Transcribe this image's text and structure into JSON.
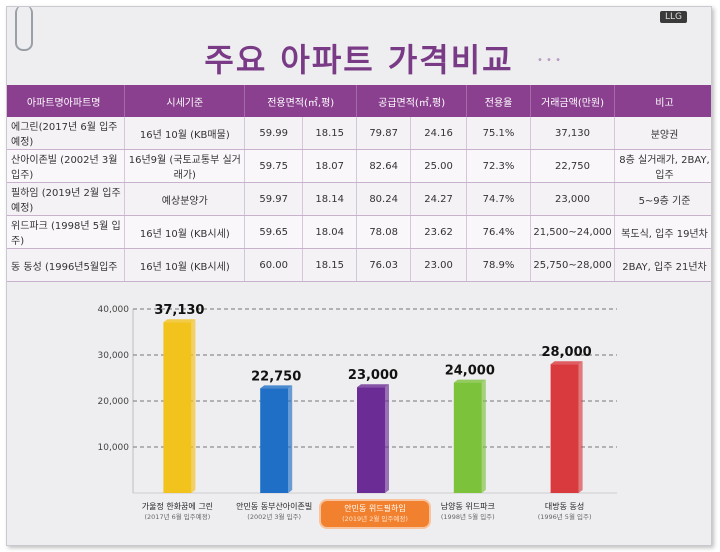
{
  "title": "주요 아파트 가격비교",
  "corner_badge": "LLG",
  "table": {
    "headers": [
      "아파트명아파트명",
      "시세기준",
      "전용면적(㎡,평)",
      "공급면적(㎡,평)",
      "전용율",
      "거래금액(만원)",
      "비고"
    ],
    "rows": [
      [
        "에그린(2017년 6월 입주예정)",
        "16년 10월 (KB매물)",
        "59.99",
        "18.15",
        "79.87",
        "24.16",
        "75.1%",
        "37,130",
        "분양권"
      ],
      [
        "산아이존빌 (2002년 3월입주)",
        "16년9월 (국토교통부 실거래가)",
        "59.75",
        "18.07",
        "82.64",
        "25.00",
        "72.3%",
        "22,750",
        "8층 실거래가, 2BAY, 입주"
      ],
      [
        "필하임 (2019년 2월 입주예정)",
        "예상분양가",
        "59.97",
        "18.14",
        "80.24",
        "24.27",
        "74.7%",
        "23,000",
        "5~9층 기준"
      ],
      [
        "위드파크 (1998년 5월 입주)",
        "16년 10월 (KB시세)",
        "59.65",
        "18.04",
        "78.08",
        "23.62",
        "76.4%",
        "21,500~24,000",
        "복도식, 입주 19년차"
      ],
      [
        "동 동성 (1996년5월입주",
        "16년 10월 (KB시세)",
        "60.00",
        "18.15",
        "76.03",
        "23.00",
        "78.9%",
        "25,750~28,000",
        "2BAY, 입주 21년차"
      ]
    ]
  },
  "chart_data": {
    "type": "bar",
    "title": "",
    "xlabel": "",
    "ylabel": "",
    "ylim": [
      0,
      40000
    ],
    "yticks": [
      "10,000",
      "20,000",
      "30,000",
      "40,000"
    ],
    "grid": true,
    "categories": [
      {
        "name": "가울정 한화꿈에 그린",
        "sub": "(2017년 6월 입주예정)"
      },
      {
        "name": "안민동 동부산아이존빌",
        "sub": "(2002년 3월 입주)"
      },
      {
        "name": "안민동 위드필하임",
        "sub": "(2019년 2월 입주예정)"
      },
      {
        "name": "남양동 위드파크",
        "sub": "(1998년 5월 입주)"
      },
      {
        "name": "대방동 동성",
        "sub": "(1996년 5월 입주)"
      }
    ],
    "values": [
      37130,
      22750,
      23000,
      24000,
      28000
    ],
    "value_labels": [
      "37,130",
      "22,750",
      "23,000",
      "24,000",
      "28,000"
    ],
    "colors": [
      "#f2c21d",
      "#1f6fc6",
      "#6b2d95",
      "#7cc23a",
      "#d93a3e"
    ],
    "highlight_index": 2
  }
}
